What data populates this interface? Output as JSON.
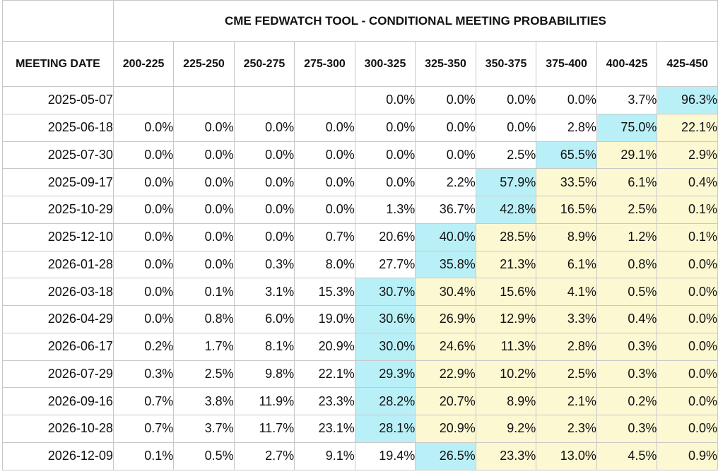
{
  "title": "CME FEDWATCH TOOL - CONDITIONAL MEETING PROBABILITIES",
  "header": {
    "date_label": "MEETING DATE",
    "ranges": [
      "200-225",
      "225-250",
      "250-275",
      "275-300",
      "300-325",
      "325-350",
      "350-375",
      "375-400",
      "400-425",
      "425-450"
    ]
  },
  "highlight_colors": {
    "max": "#b9f0f8",
    "tail": "#fbf8d2"
  },
  "rows": [
    {
      "date": "2025-05-07",
      "cells": [
        {
          "v": "",
          "hl": "none"
        },
        {
          "v": "",
          "hl": "none"
        },
        {
          "v": "",
          "hl": "none"
        },
        {
          "v": "",
          "hl": "none"
        },
        {
          "v": "0.0%",
          "hl": "none"
        },
        {
          "v": "0.0%",
          "hl": "none"
        },
        {
          "v": "0.0%",
          "hl": "none"
        },
        {
          "v": "0.0%",
          "hl": "none"
        },
        {
          "v": "3.7%",
          "hl": "none"
        },
        {
          "v": "96.3%",
          "hl": "max"
        }
      ]
    },
    {
      "date": "2025-06-18",
      "cells": [
        {
          "v": "0.0%",
          "hl": "none"
        },
        {
          "v": "0.0%",
          "hl": "none"
        },
        {
          "v": "0.0%",
          "hl": "none"
        },
        {
          "v": "0.0%",
          "hl": "none"
        },
        {
          "v": "0.0%",
          "hl": "none"
        },
        {
          "v": "0.0%",
          "hl": "none"
        },
        {
          "v": "0.0%",
          "hl": "none"
        },
        {
          "v": "2.8%",
          "hl": "none"
        },
        {
          "v": "75.0%",
          "hl": "max"
        },
        {
          "v": "22.1%",
          "hl": "tail"
        }
      ]
    },
    {
      "date": "2025-07-30",
      "cells": [
        {
          "v": "0.0%",
          "hl": "none"
        },
        {
          "v": "0.0%",
          "hl": "none"
        },
        {
          "v": "0.0%",
          "hl": "none"
        },
        {
          "v": "0.0%",
          "hl": "none"
        },
        {
          "v": "0.0%",
          "hl": "none"
        },
        {
          "v": "0.0%",
          "hl": "none"
        },
        {
          "v": "2.5%",
          "hl": "none"
        },
        {
          "v": "65.5%",
          "hl": "max"
        },
        {
          "v": "29.1%",
          "hl": "tail"
        },
        {
          "v": "2.9%",
          "hl": "tail"
        }
      ]
    },
    {
      "date": "2025-09-17",
      "cells": [
        {
          "v": "0.0%",
          "hl": "none"
        },
        {
          "v": "0.0%",
          "hl": "none"
        },
        {
          "v": "0.0%",
          "hl": "none"
        },
        {
          "v": "0.0%",
          "hl": "none"
        },
        {
          "v": "0.0%",
          "hl": "none"
        },
        {
          "v": "2.2%",
          "hl": "none"
        },
        {
          "v": "57.9%",
          "hl": "max"
        },
        {
          "v": "33.5%",
          "hl": "tail"
        },
        {
          "v": "6.1%",
          "hl": "tail"
        },
        {
          "v": "0.4%",
          "hl": "tail"
        }
      ]
    },
    {
      "date": "2025-10-29",
      "cells": [
        {
          "v": "0.0%",
          "hl": "none"
        },
        {
          "v": "0.0%",
          "hl": "none"
        },
        {
          "v": "0.0%",
          "hl": "none"
        },
        {
          "v": "0.0%",
          "hl": "none"
        },
        {
          "v": "1.3%",
          "hl": "none"
        },
        {
          "v": "36.7%",
          "hl": "none"
        },
        {
          "v": "42.8%",
          "hl": "max"
        },
        {
          "v": "16.5%",
          "hl": "tail"
        },
        {
          "v": "2.5%",
          "hl": "tail"
        },
        {
          "v": "0.1%",
          "hl": "tail"
        }
      ]
    },
    {
      "date": "2025-12-10",
      "cells": [
        {
          "v": "0.0%",
          "hl": "none"
        },
        {
          "v": "0.0%",
          "hl": "none"
        },
        {
          "v": "0.0%",
          "hl": "none"
        },
        {
          "v": "0.7%",
          "hl": "none"
        },
        {
          "v": "20.6%",
          "hl": "none"
        },
        {
          "v": "40.0%",
          "hl": "max"
        },
        {
          "v": "28.5%",
          "hl": "tail"
        },
        {
          "v": "8.9%",
          "hl": "tail"
        },
        {
          "v": "1.2%",
          "hl": "tail"
        },
        {
          "v": "0.1%",
          "hl": "tail"
        }
      ]
    },
    {
      "date": "2026-01-28",
      "cells": [
        {
          "v": "0.0%",
          "hl": "none"
        },
        {
          "v": "0.0%",
          "hl": "none"
        },
        {
          "v": "0.3%",
          "hl": "none"
        },
        {
          "v": "8.0%",
          "hl": "none"
        },
        {
          "v": "27.7%",
          "hl": "none"
        },
        {
          "v": "35.8%",
          "hl": "max"
        },
        {
          "v": "21.3%",
          "hl": "tail"
        },
        {
          "v": "6.1%",
          "hl": "tail"
        },
        {
          "v": "0.8%",
          "hl": "tail"
        },
        {
          "v": "0.0%",
          "hl": "tail"
        }
      ]
    },
    {
      "date": "2026-03-18",
      "cells": [
        {
          "v": "0.0%",
          "hl": "none"
        },
        {
          "v": "0.1%",
          "hl": "none"
        },
        {
          "v": "3.1%",
          "hl": "none"
        },
        {
          "v": "15.3%",
          "hl": "none"
        },
        {
          "v": "30.7%",
          "hl": "max"
        },
        {
          "v": "30.4%",
          "hl": "tail"
        },
        {
          "v": "15.6%",
          "hl": "tail"
        },
        {
          "v": "4.1%",
          "hl": "tail"
        },
        {
          "v": "0.5%",
          "hl": "tail"
        },
        {
          "v": "0.0%",
          "hl": "tail"
        }
      ]
    },
    {
      "date": "2026-04-29",
      "cells": [
        {
          "v": "0.0%",
          "hl": "none"
        },
        {
          "v": "0.8%",
          "hl": "none"
        },
        {
          "v": "6.0%",
          "hl": "none"
        },
        {
          "v": "19.0%",
          "hl": "none"
        },
        {
          "v": "30.6%",
          "hl": "max"
        },
        {
          "v": "26.9%",
          "hl": "tail"
        },
        {
          "v": "12.9%",
          "hl": "tail"
        },
        {
          "v": "3.3%",
          "hl": "tail"
        },
        {
          "v": "0.4%",
          "hl": "tail"
        },
        {
          "v": "0.0%",
          "hl": "tail"
        }
      ]
    },
    {
      "date": "2026-06-17",
      "cells": [
        {
          "v": "0.2%",
          "hl": "none"
        },
        {
          "v": "1.7%",
          "hl": "none"
        },
        {
          "v": "8.1%",
          "hl": "none"
        },
        {
          "v": "20.9%",
          "hl": "none"
        },
        {
          "v": "30.0%",
          "hl": "max"
        },
        {
          "v": "24.6%",
          "hl": "tail"
        },
        {
          "v": "11.3%",
          "hl": "tail"
        },
        {
          "v": "2.8%",
          "hl": "tail"
        },
        {
          "v": "0.3%",
          "hl": "tail"
        },
        {
          "v": "0.0%",
          "hl": "tail"
        }
      ]
    },
    {
      "date": "2026-07-29",
      "cells": [
        {
          "v": "0.3%",
          "hl": "none"
        },
        {
          "v": "2.5%",
          "hl": "none"
        },
        {
          "v": "9.8%",
          "hl": "none"
        },
        {
          "v": "22.1%",
          "hl": "none"
        },
        {
          "v": "29.3%",
          "hl": "max"
        },
        {
          "v": "22.9%",
          "hl": "tail"
        },
        {
          "v": "10.2%",
          "hl": "tail"
        },
        {
          "v": "2.5%",
          "hl": "tail"
        },
        {
          "v": "0.3%",
          "hl": "tail"
        },
        {
          "v": "0.0%",
          "hl": "tail"
        }
      ]
    },
    {
      "date": "2026-09-16",
      "cells": [
        {
          "v": "0.7%",
          "hl": "none"
        },
        {
          "v": "3.8%",
          "hl": "none"
        },
        {
          "v": "11.9%",
          "hl": "none"
        },
        {
          "v": "23.3%",
          "hl": "none"
        },
        {
          "v": "28.2%",
          "hl": "max"
        },
        {
          "v": "20.7%",
          "hl": "tail"
        },
        {
          "v": "8.9%",
          "hl": "tail"
        },
        {
          "v": "2.1%",
          "hl": "tail"
        },
        {
          "v": "0.2%",
          "hl": "tail"
        },
        {
          "v": "0.0%",
          "hl": "tail"
        }
      ]
    },
    {
      "date": "2026-10-28",
      "cells": [
        {
          "v": "0.7%",
          "hl": "none"
        },
        {
          "v": "3.7%",
          "hl": "none"
        },
        {
          "v": "11.7%",
          "hl": "none"
        },
        {
          "v": "23.1%",
          "hl": "none"
        },
        {
          "v": "28.1%",
          "hl": "max"
        },
        {
          "v": "20.9%",
          "hl": "tail"
        },
        {
          "v": "9.2%",
          "hl": "tail"
        },
        {
          "v": "2.3%",
          "hl": "tail"
        },
        {
          "v": "0.3%",
          "hl": "tail"
        },
        {
          "v": "0.0%",
          "hl": "tail"
        }
      ]
    },
    {
      "date": "2026-12-09",
      "cells": [
        {
          "v": "0.1%",
          "hl": "none"
        },
        {
          "v": "0.5%",
          "hl": "none"
        },
        {
          "v": "2.7%",
          "hl": "none"
        },
        {
          "v": "9.1%",
          "hl": "none"
        },
        {
          "v": "19.4%",
          "hl": "none"
        },
        {
          "v": "26.5%",
          "hl": "max"
        },
        {
          "v": "23.3%",
          "hl": "tail"
        },
        {
          "v": "13.0%",
          "hl": "tail"
        },
        {
          "v": "4.5%",
          "hl": "tail"
        },
        {
          "v": "0.9%",
          "hl": "tail"
        }
      ]
    }
  ]
}
